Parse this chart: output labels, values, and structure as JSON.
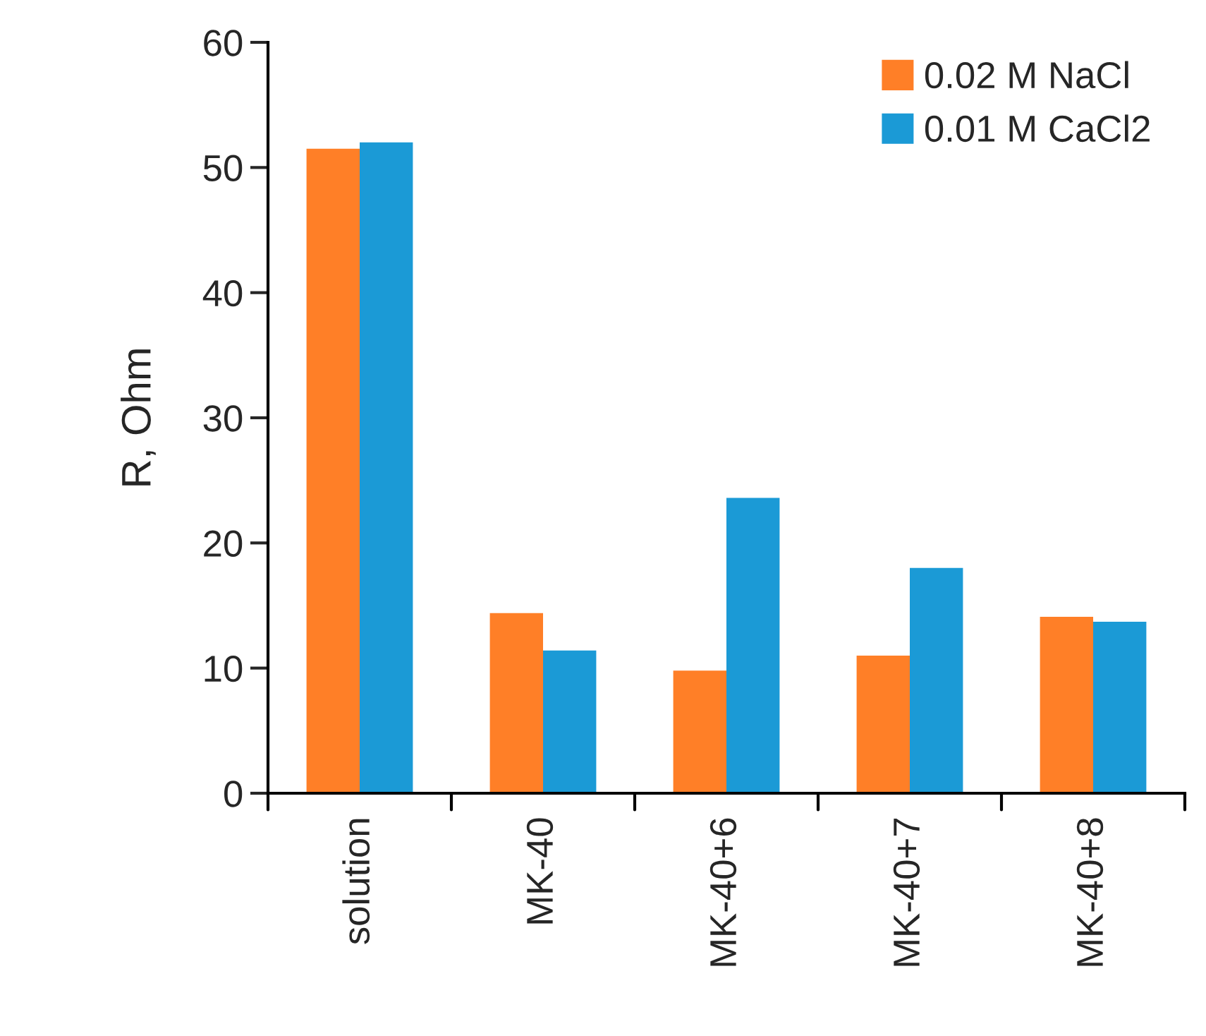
{
  "chart_data": {
    "type": "bar",
    "ylabel": "R, Ohm",
    "categories": [
      "solution",
      "MK-40",
      "MK-40+6",
      "MK-40+7",
      "MK-40+8"
    ],
    "series": [
      {
        "name": "0.02 M NaCl",
        "color": "#ff7f27",
        "values": [
          51.5,
          14.4,
          9.8,
          11.0,
          14.1
        ]
      },
      {
        "name": "0.01 M CaCl2",
        "color": "#1b9ad6",
        "values": [
          52.0,
          11.4,
          23.6,
          18.0,
          13.7
        ]
      }
    ],
    "ylim": [
      0,
      60
    ],
    "yticks": [
      0,
      10,
      20,
      30,
      40,
      50,
      60
    ],
    "legend": "top right",
    "grid": false
  }
}
